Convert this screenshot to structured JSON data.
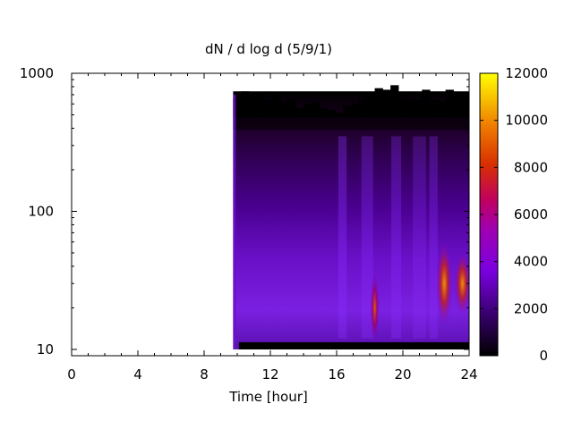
{
  "chart_data": {
    "type": "heatmap",
    "title": "dN / d log d (5/9/1)",
    "xlabel": "Time [hour]",
    "ylabel": "",
    "xlim": [
      0,
      24
    ],
    "ylim": [
      9,
      1000
    ],
    "y_scale": "log",
    "x_ticks": [
      0,
      4,
      8,
      12,
      16,
      20,
      24
    ],
    "y_ticks": [
      10,
      100,
      1000
    ],
    "colorbar": {
      "min": 0,
      "max": 12000,
      "ticks": [
        0,
        2000,
        4000,
        6000,
        8000,
        10000,
        12000
      ],
      "colormap": "gnuplot-palette (black-purple-red-orange-yellow)"
    },
    "data_extent": {
      "x_start": 9.75,
      "x_end": 24,
      "y_min": 10,
      "y_max_envelope_note": "upper edge varies roughly 500-800"
    },
    "hotspots": [
      {
        "x": 18.3,
        "y": 20,
        "value": 7000
      },
      {
        "x": 22.5,
        "y": 30,
        "value": 8500
      },
      {
        "x": 23.6,
        "y": 30,
        "value": 9000
      }
    ],
    "grid": false,
    "legend": "colorbar-right"
  }
}
